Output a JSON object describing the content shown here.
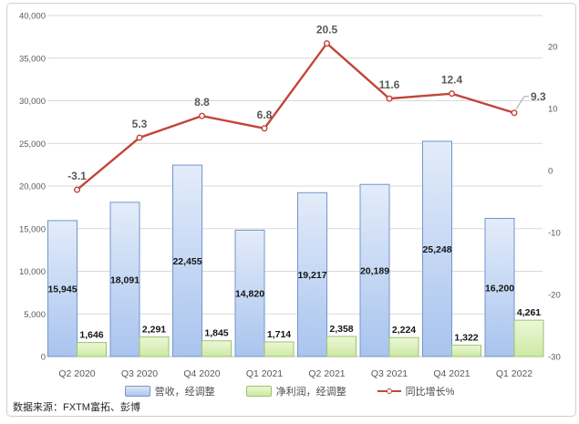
{
  "source_note": "数据来源：FXTM富拓、彭博",
  "legend": {
    "items": [
      {
        "label": "营收，经调整"
      },
      {
        "label": "净利润，经调整"
      },
      {
        "label": "同比增长%"
      }
    ]
  },
  "colors": {
    "revenue_fill_top": "#e3ecfa",
    "revenue_fill_bottom": "#a9c4ee",
    "revenue_border": "#7396c8",
    "profit_fill_top": "#ecf7d8",
    "profit_fill_bottom": "#cde9a3",
    "profit_border": "#9cc26c",
    "growth_line": "#c2453a",
    "axis_text": "#595959",
    "gridline": "#d9d9d9",
    "bar_label": "#151515"
  },
  "chart_data": {
    "type": "combo",
    "title": "",
    "categories": [
      "Q2 2020",
      "Q3 2020",
      "Q4 2020",
      "Q1 2021",
      "Q2 2021",
      "Q3 2021",
      "Q4 2021",
      "Q1 2022"
    ],
    "series": [
      {
        "name": "营收，经调整",
        "chart": "bar",
        "axis": "left",
        "values": [
          15945,
          18091,
          22455,
          14820,
          19217,
          20189,
          25248,
          16200
        ],
        "labels": [
          "15,945",
          "18,091",
          "22,455",
          "14,820",
          "19,217",
          "20,189",
          "25,248",
          "16,200"
        ]
      },
      {
        "name": "净利润，经调整",
        "chart": "bar",
        "axis": "left",
        "values": [
          1646,
          2291,
          1845,
          1714,
          2358,
          2224,
          1322,
          4261
        ],
        "labels": [
          "1,646",
          "2,291",
          "1,845",
          "1,714",
          "2,358",
          "2,224",
          "1,322",
          "4,261"
        ]
      },
      {
        "name": "同比增长%",
        "chart": "line",
        "axis": "right",
        "values": [
          -3.1,
          5.3,
          8.8,
          6.8,
          20.5,
          11.6,
          12.4,
          9.3
        ],
        "labels": [
          "-3.1",
          "5.3",
          "8.8",
          "6.8",
          "20.5",
          "11.6",
          "12.4",
          "9.3"
        ]
      }
    ],
    "left_axis": {
      "min": 0,
      "max": 40000,
      "step": 5000,
      "tick_labels": [
        "0",
        "5,000",
        "10,000",
        "15,000",
        "20,000",
        "25,000",
        "30,000",
        "35,000",
        "40,000"
      ]
    },
    "right_axis": {
      "min": -30,
      "max": 25,
      "step": 10,
      "tick_labels": [
        "-30",
        "-20",
        "-10",
        "0",
        "10",
        "20"
      ]
    },
    "grid": true,
    "legend_position": "bottom"
  }
}
